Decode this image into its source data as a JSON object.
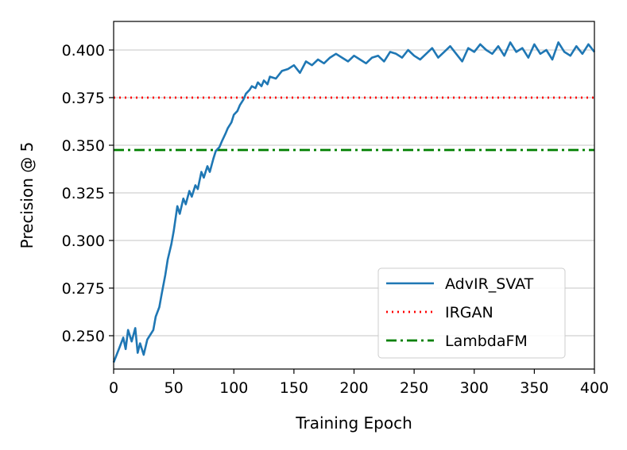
{
  "chart_data": {
    "type": "line",
    "title": "",
    "xlabel": "Training Epoch",
    "ylabel": "Precision @ 5",
    "xlim": [
      0,
      400
    ],
    "ylim": [
      0.2325,
      0.415
    ],
    "xticks": [
      0,
      50,
      100,
      150,
      200,
      250,
      300,
      350,
      400
    ],
    "yticks": [
      0.25,
      0.275,
      0.3,
      0.325,
      0.35,
      0.375,
      0.4
    ],
    "xtick_labels": [
      "0",
      "50",
      "100",
      "150",
      "200",
      "250",
      "300",
      "350",
      "400"
    ],
    "ytick_labels": [
      "0.250",
      "0.275",
      "0.300",
      "0.325",
      "0.350",
      "0.375",
      "0.400"
    ],
    "grid": "horizontal",
    "legend_position": "lower-right",
    "series": [
      {
        "name": "AdvIR_SVAT",
        "style": "solid",
        "color": "#1f77b4",
        "x": [
          0,
          5,
          8,
          10,
          12,
          15,
          18,
          20,
          22,
          25,
          28,
          30,
          33,
          35,
          38,
          40,
          43,
          45,
          48,
          50,
          53,
          55,
          58,
          60,
          63,
          65,
          68,
          70,
          73,
          75,
          78,
          80,
          83,
          85,
          88,
          90,
          93,
          95,
          98,
          100,
          103,
          105,
          108,
          110,
          113,
          115,
          118,
          120,
          123,
          125,
          128,
          130,
          135,
          140,
          145,
          150,
          155,
          160,
          165,
          170,
          175,
          180,
          185,
          190,
          195,
          200,
          205,
          210,
          215,
          220,
          225,
          230,
          235,
          240,
          245,
          250,
          255,
          260,
          265,
          270,
          275,
          280,
          285,
          290,
          295,
          300,
          305,
          310,
          315,
          320,
          325,
          330,
          335,
          340,
          345,
          350,
          355,
          360,
          365,
          370,
          375,
          380,
          385,
          390,
          395,
          400
        ],
        "values": [
          0.236,
          0.244,
          0.249,
          0.243,
          0.253,
          0.247,
          0.254,
          0.241,
          0.246,
          0.24,
          0.248,
          0.25,
          0.253,
          0.26,
          0.265,
          0.272,
          0.282,
          0.29,
          0.298,
          0.305,
          0.318,
          0.314,
          0.322,
          0.319,
          0.326,
          0.323,
          0.329,
          0.327,
          0.336,
          0.333,
          0.339,
          0.336,
          0.343,
          0.347,
          0.349,
          0.352,
          0.356,
          0.359,
          0.362,
          0.366,
          0.368,
          0.371,
          0.374,
          0.377,
          0.379,
          0.381,
          0.38,
          0.383,
          0.381,
          0.384,
          0.382,
          0.386,
          0.385,
          0.389,
          0.39,
          0.392,
          0.388,
          0.394,
          0.392,
          0.395,
          0.393,
          0.396,
          0.398,
          0.396,
          0.394,
          0.397,
          0.395,
          0.393,
          0.396,
          0.397,
          0.394,
          0.399,
          0.398,
          0.396,
          0.4,
          0.397,
          0.395,
          0.398,
          0.401,
          0.396,
          0.399,
          0.402,
          0.398,
          0.394,
          0.401,
          0.399,
          0.403,
          0.4,
          0.398,
          0.402,
          0.397,
          0.404,
          0.399,
          0.401,
          0.396,
          0.403,
          0.398,
          0.4,
          0.395,
          0.404,
          0.399,
          0.397,
          0.402,
          0.398,
          0.403,
          0.399
        ]
      },
      {
        "name": "IRGAN",
        "style": "dotted",
        "color": "#ff0000",
        "x": [
          0,
          400
        ],
        "values": [
          0.375,
          0.375
        ]
      },
      {
        "name": "LambdaFM",
        "style": "dashdot",
        "color": "#008000",
        "x": [
          0,
          400
        ],
        "values": [
          0.3475,
          0.3475
        ]
      }
    ]
  }
}
